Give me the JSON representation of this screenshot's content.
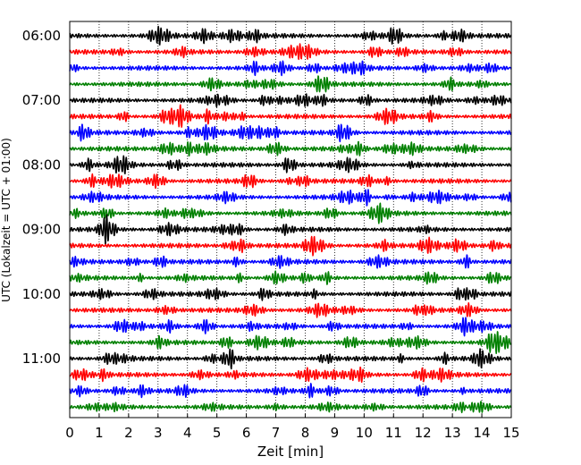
{
  "chart_data": {
    "type": "line",
    "title": "",
    "xlabel": "Zeit  [min]",
    "ylabel": "UTC (Lokalzeit = UTC + 01:00)",
    "xlim": [
      0,
      15
    ],
    "x_ticks": [
      0,
      1,
      2,
      3,
      4,
      5,
      6,
      7,
      8,
      9,
      10,
      11,
      12,
      13,
      14,
      15
    ],
    "x_grid": "dotted vertical lines at each minute",
    "y_ticks": [
      "06:00",
      "07:00",
      "08:00",
      "09:00",
      "10:00",
      "11:00"
    ],
    "trace_interval_minutes": 15,
    "first_trace": "06:00",
    "last_trace": "11:45",
    "trace_count": 24,
    "colors": [
      "#000000",
      "#ff0000",
      "#0000ff",
      "#008000"
    ],
    "series": [
      {
        "start": "06:00",
        "color": "#000000"
      },
      {
        "start": "06:15",
        "color": "#ff0000"
      },
      {
        "start": "06:30",
        "color": "#0000ff"
      },
      {
        "start": "06:45",
        "color": "#008000"
      },
      {
        "start": "07:00",
        "color": "#000000"
      },
      {
        "start": "07:15",
        "color": "#ff0000"
      },
      {
        "start": "07:30",
        "color": "#0000ff"
      },
      {
        "start": "07:45",
        "color": "#008000"
      },
      {
        "start": "08:00",
        "color": "#000000"
      },
      {
        "start": "08:15",
        "color": "#ff0000"
      },
      {
        "start": "08:30",
        "color": "#0000ff"
      },
      {
        "start": "08:45",
        "color": "#008000"
      },
      {
        "start": "09:00",
        "color": "#000000"
      },
      {
        "start": "09:15",
        "color": "#ff0000"
      },
      {
        "start": "09:30",
        "color": "#0000ff"
      },
      {
        "start": "09:45",
        "color": "#008000"
      },
      {
        "start": "10:00",
        "color": "#000000"
      },
      {
        "start": "10:15",
        "color": "#ff0000"
      },
      {
        "start": "10:30",
        "color": "#0000ff"
      },
      {
        "start": "10:45",
        "color": "#008000"
      },
      {
        "start": "11:00",
        "color": "#000000"
      },
      {
        "start": "11:15",
        "color": "#ff0000"
      },
      {
        "start": "11:30",
        "color": "#0000ff"
      },
      {
        "start": "11:45",
        "color": "#008000"
      }
    ]
  }
}
